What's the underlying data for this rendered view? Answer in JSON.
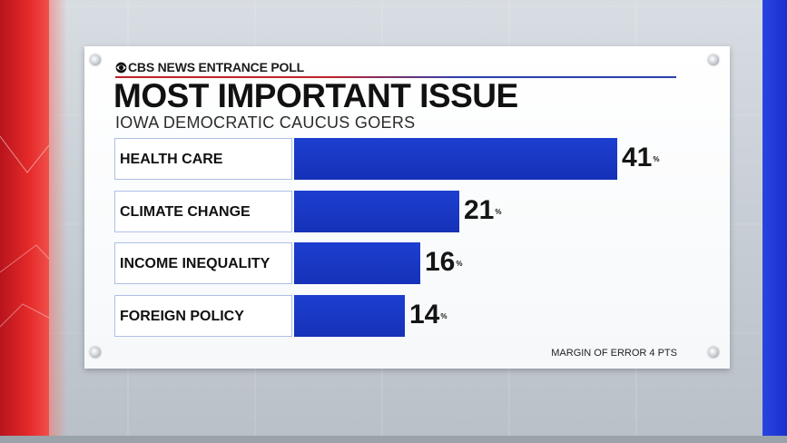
{
  "brand": {
    "name": "CBS NEWS ENTRANCE POLL",
    "icon": "cbs-eye-icon"
  },
  "colors": {
    "bar": "#1a38c8",
    "accent_red": "#c0202a",
    "accent_blue": "#2a3fb0"
  },
  "footnote": "MARGIN OF ERROR 4 PTS",
  "chart_data": {
    "type": "bar",
    "orientation": "horizontal",
    "title": "MOST IMPORTANT ISSUE",
    "subtitle": "IOWA DEMOCRATIC CAUCUS GOERS",
    "categories": [
      "HEALTH CARE",
      "CLIMATE CHANGE",
      "INCOME INEQUALITY",
      "FOREIGN POLICY"
    ],
    "values": [
      41,
      21,
      16,
      14
    ],
    "value_suffix": "%",
    "xlim": [
      0,
      50
    ],
    "grid": false,
    "legend": "none"
  }
}
